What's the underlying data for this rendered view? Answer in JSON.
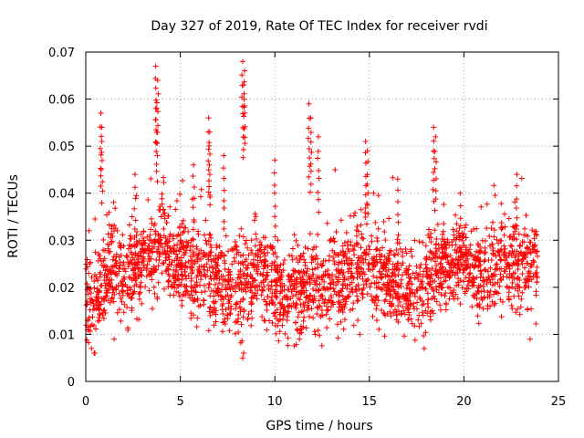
{
  "chart_data": {
    "type": "scatter",
    "title": "Day 327 of 2019, Rate Of TEC Index for receiver rvdi",
    "xlabel": "GPS time / hours",
    "ylabel": "ROTI / TECUs",
    "xlim": [
      0,
      25
    ],
    "ylim": [
      0,
      0.07
    ],
    "xticks": [
      "0",
      "5",
      "10",
      "15",
      "20",
      "25"
    ],
    "yticks": [
      "0",
      "0.01",
      "0.02",
      "0.03",
      "0.04",
      "0.05",
      "0.06",
      "0.07"
    ],
    "grid": true,
    "marker": "+",
    "color": "#ff0000",
    "series_envelope": [
      {
        "x": 0.0,
        "y": 0.018
      },
      {
        "x": 0.5,
        "y": 0.016
      },
      {
        "x": 1.0,
        "y": 0.022
      },
      {
        "x": 1.5,
        "y": 0.024
      },
      {
        "x": 2.0,
        "y": 0.021
      },
      {
        "x": 2.5,
        "y": 0.023
      },
      {
        "x": 3.0,
        "y": 0.024
      },
      {
        "x": 3.5,
        "y": 0.027
      },
      {
        "x": 4.0,
        "y": 0.03
      },
      {
        "x": 4.5,
        "y": 0.027
      },
      {
        "x": 5.0,
        "y": 0.026
      },
      {
        "x": 5.5,
        "y": 0.024
      },
      {
        "x": 6.0,
        "y": 0.022
      },
      {
        "x": 6.5,
        "y": 0.023
      },
      {
        "x": 7.0,
        "y": 0.021
      },
      {
        "x": 7.5,
        "y": 0.02
      },
      {
        "x": 8.0,
        "y": 0.022
      },
      {
        "x": 8.5,
        "y": 0.021
      },
      {
        "x": 9.0,
        "y": 0.024
      },
      {
        "x": 9.5,
        "y": 0.023
      },
      {
        "x": 10.0,
        "y": 0.02
      },
      {
        "x": 10.5,
        "y": 0.018
      },
      {
        "x": 11.0,
        "y": 0.02
      },
      {
        "x": 11.5,
        "y": 0.019
      },
      {
        "x": 12.0,
        "y": 0.021
      },
      {
        "x": 12.5,
        "y": 0.02
      },
      {
        "x": 13.0,
        "y": 0.022
      },
      {
        "x": 13.5,
        "y": 0.021
      },
      {
        "x": 14.0,
        "y": 0.023
      },
      {
        "x": 14.5,
        "y": 0.025
      },
      {
        "x": 15.0,
        "y": 0.024
      },
      {
        "x": 15.5,
        "y": 0.022
      },
      {
        "x": 16.0,
        "y": 0.022
      },
      {
        "x": 16.5,
        "y": 0.021
      },
      {
        "x": 17.0,
        "y": 0.019
      },
      {
        "x": 17.5,
        "y": 0.018
      },
      {
        "x": 18.0,
        "y": 0.02
      },
      {
        "x": 18.5,
        "y": 0.024
      },
      {
        "x": 19.0,
        "y": 0.024
      },
      {
        "x": 19.5,
        "y": 0.025
      },
      {
        "x": 20.0,
        "y": 0.025
      },
      {
        "x": 20.5,
        "y": 0.023
      },
      {
        "x": 21.0,
        "y": 0.022
      },
      {
        "x": 21.5,
        "y": 0.025
      },
      {
        "x": 22.0,
        "y": 0.026
      },
      {
        "x": 22.5,
        "y": 0.024
      },
      {
        "x": 23.0,
        "y": 0.023
      },
      {
        "x": 23.5,
        "y": 0.024
      },
      {
        "x": 23.9,
        "y": 0.024
      }
    ],
    "spread": 0.006,
    "peaks": [
      {
        "x": 3.7,
        "y": 0.067
      },
      {
        "x": 3.8,
        "y": 0.064
      },
      {
        "x": 3.75,
        "y": 0.058
      },
      {
        "x": 8.3,
        "y": 0.068
      },
      {
        "x": 8.4,
        "y": 0.066
      },
      {
        "x": 8.35,
        "y": 0.063
      },
      {
        "x": 11.8,
        "y": 0.059
      },
      {
        "x": 11.9,
        "y": 0.056
      },
      {
        "x": 12.3,
        "y": 0.052
      },
      {
        "x": 0.8,
        "y": 0.057
      },
      {
        "x": 0.85,
        "y": 0.054
      },
      {
        "x": 6.5,
        "y": 0.056
      },
      {
        "x": 6.55,
        "y": 0.053
      },
      {
        "x": 18.4,
        "y": 0.054
      },
      {
        "x": 18.5,
        "y": 0.052
      },
      {
        "x": 14.8,
        "y": 0.051
      },
      {
        "x": 14.9,
        "y": 0.049
      },
      {
        "x": 7.3,
        "y": 0.048
      },
      {
        "x": 10.0,
        "y": 0.047
      },
      {
        "x": 22.8,
        "y": 0.044
      },
      {
        "x": 2.6,
        "y": 0.044
      },
      {
        "x": 5.7,
        "y": 0.046
      },
      {
        "x": 16.5,
        "y": 0.043
      },
      {
        "x": 19.8,
        "y": 0.04
      }
    ],
    "dips": [
      {
        "x": 8.3,
        "y": 0.005
      },
      {
        "x": 8.35,
        "y": 0.006
      },
      {
        "x": 0.3,
        "y": 0.007
      },
      {
        "x": 17.9,
        "y": 0.007
      },
      {
        "x": 23.5,
        "y": 0.009
      },
      {
        "x": 1.5,
        "y": 0.009
      },
      {
        "x": 11.3,
        "y": 0.009
      },
      {
        "x": 14.5,
        "y": 0.01
      }
    ]
  }
}
